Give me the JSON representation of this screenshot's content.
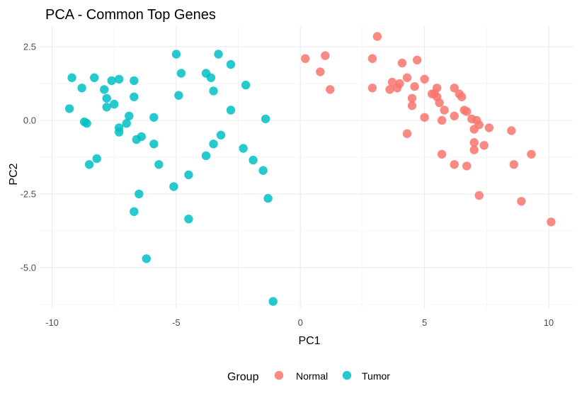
{
  "chart_data": {
    "type": "scatter",
    "title": "PCA - Common Top Genes",
    "xlabel": "PC1",
    "ylabel": "PC2",
    "xlim": [
      -10.5,
      11.0
    ],
    "ylim": [
      -6.4,
      3.2
    ],
    "x_ticks": [
      -10,
      -5,
      0,
      5,
      10
    ],
    "x_tick_labels": [
      "-10",
      "-5",
      "0",
      "5",
      "10"
    ],
    "y_ticks": [
      -5.0,
      -2.5,
      0.0,
      2.5
    ],
    "y_tick_labels": [
      "-5.0",
      "-2.5",
      "0.0",
      "2.5"
    ],
    "grid": true,
    "legend": {
      "title": "Group",
      "position": "bottom"
    },
    "series": [
      {
        "name": "Normal",
        "color": "#F8766D",
        "points": [
          [
            0.2,
            2.1
          ],
          [
            1.0,
            2.2
          ],
          [
            0.8,
            1.65
          ],
          [
            1.2,
            1.05
          ],
          [
            3.1,
            2.85
          ],
          [
            2.9,
            2.1
          ],
          [
            2.9,
            1.1
          ],
          [
            3.6,
            1.05
          ],
          [
            3.7,
            1.3
          ],
          [
            3.9,
            1.1
          ],
          [
            4.0,
            1.25
          ],
          [
            4.1,
            1.95
          ],
          [
            4.3,
            1.45
          ],
          [
            4.5,
            0.75
          ],
          [
            4.5,
            0.5
          ],
          [
            4.6,
            1.15
          ],
          [
            4.7,
            2.05
          ],
          [
            4.3,
            -0.45
          ],
          [
            5.0,
            1.4
          ],
          [
            5.0,
            0.1
          ],
          [
            5.3,
            0.9
          ],
          [
            5.4,
            0.9
          ],
          [
            5.5,
            1.1
          ],
          [
            5.5,
            0.8
          ],
          [
            5.6,
            0.6
          ],
          [
            5.7,
            0.0
          ],
          [
            5.8,
            0.35
          ],
          [
            5.7,
            -1.15
          ],
          [
            6.2,
            1.1
          ],
          [
            6.2,
            0.15
          ],
          [
            6.4,
            0.9
          ],
          [
            6.5,
            0.8
          ],
          [
            6.6,
            0.35
          ],
          [
            6.7,
            0.3
          ],
          [
            6.2,
            -1.5
          ],
          [
            6.7,
            -1.55
          ],
          [
            6.9,
            0.05
          ],
          [
            7.0,
            -0.3
          ],
          [
            7.0,
            -0.75
          ],
          [
            7.1,
            0.0
          ],
          [
            7.2,
            -0.15
          ],
          [
            7.0,
            -1.0
          ],
          [
            7.4,
            -0.85
          ],
          [
            7.6,
            -0.25
          ],
          [
            7.2,
            -2.55
          ],
          [
            8.5,
            -0.35
          ],
          [
            8.6,
            -1.5
          ],
          [
            8.9,
            -2.75
          ],
          [
            9.3,
            -1.15
          ],
          [
            10.1,
            -3.45
          ]
        ]
      },
      {
        "name": "Tumor",
        "color": "#00BFC4",
        "points": [
          [
            -9.2,
            1.45
          ],
          [
            -9.3,
            0.4
          ],
          [
            -8.8,
            1.1
          ],
          [
            -8.7,
            -0.05
          ],
          [
            -8.6,
            -0.1
          ],
          [
            -8.3,
            1.45
          ],
          [
            -8.2,
            -1.3
          ],
          [
            -8.5,
            -1.5
          ],
          [
            -7.9,
            1.05
          ],
          [
            -7.8,
            0.75
          ],
          [
            -7.8,
            0.45
          ],
          [
            -7.6,
            1.35
          ],
          [
            -7.5,
            0.55
          ],
          [
            -7.3,
            1.4
          ],
          [
            -7.3,
            -0.25
          ],
          [
            -7.3,
            -0.4
          ],
          [
            -6.9,
            0.15
          ],
          [
            -7.0,
            -0.1
          ],
          [
            -6.7,
            1.35
          ],
          [
            -6.7,
            0.8
          ],
          [
            -6.6,
            -0.65
          ],
          [
            -6.5,
            -2.5
          ],
          [
            -6.7,
            -3.1
          ],
          [
            -6.4,
            -0.55
          ],
          [
            -6.2,
            -4.7
          ],
          [
            -5.9,
            0.1
          ],
          [
            -5.9,
            -0.8
          ],
          [
            -5.7,
            -1.5
          ],
          [
            -5.0,
            2.25
          ],
          [
            -4.9,
            0.85
          ],
          [
            -4.8,
            1.6
          ],
          [
            -5.1,
            -2.25
          ],
          [
            -4.5,
            -1.85
          ],
          [
            -4.5,
            -3.35
          ],
          [
            -3.8,
            1.6
          ],
          [
            -3.6,
            1.45
          ],
          [
            -3.5,
            1.0
          ],
          [
            -3.3,
            2.25
          ],
          [
            -3.8,
            -1.2
          ],
          [
            -3.5,
            -0.8
          ],
          [
            -3.2,
            -0.5
          ],
          [
            -2.8,
            1.9
          ],
          [
            -2.8,
            0.35
          ],
          [
            -2.2,
            1.2
          ],
          [
            -2.3,
            -0.95
          ],
          [
            -1.9,
            -1.35
          ],
          [
            -1.5,
            -1.7
          ],
          [
            -1.4,
            0.05
          ],
          [
            -1.3,
            -2.65
          ],
          [
            -1.1,
            -6.15
          ]
        ]
      }
    ]
  }
}
